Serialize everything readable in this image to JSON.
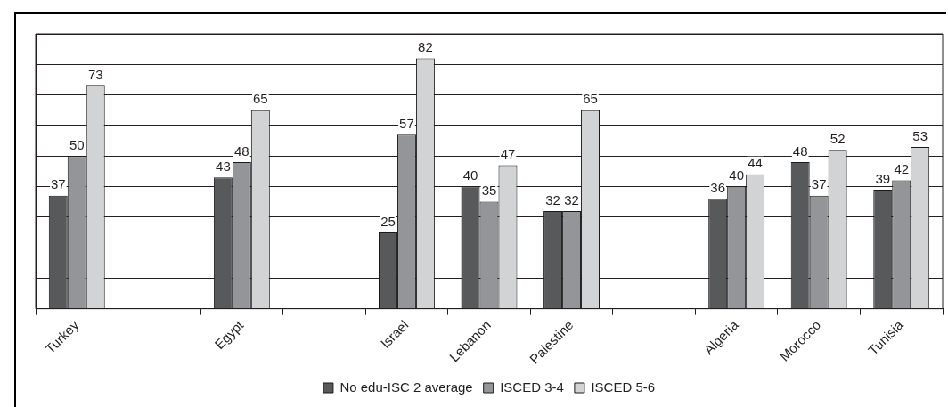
{
  "chart_data": {
    "type": "bar",
    "categories": [
      "Turkey",
      null,
      "Egypt",
      null,
      "Israel",
      "Lebanon",
      "Palestine",
      null,
      "Algeria",
      "Morocco",
      "Tunisia"
    ],
    "series": [
      {
        "name": "No edu-ISC 2 average",
        "color": "#58595b",
        "values": [
          37,
          null,
          43,
          null,
          25,
          40,
          32,
          null,
          36,
          48,
          39
        ]
      },
      {
        "name": "ISCED 3-4",
        "color": "#939598",
        "values": [
          50,
          null,
          48,
          null,
          57,
          35,
          32,
          null,
          40,
          37,
          42
        ]
      },
      {
        "name": "ISCED 5-6",
        "color": "#d1d3d4",
        "values": [
          73,
          null,
          65,
          null,
          82,
          47,
          65,
          null,
          44,
          52,
          53
        ]
      }
    ],
    "ylim": [
      0,
      90
    ],
    "yticks": [
      {
        "value": 0,
        "label": null
      },
      {
        "value": 10,
        "label": null
      },
      {
        "value": 20,
        "label": null
      },
      {
        "value": 30,
        "label": null
      },
      {
        "value": 40,
        "label": null
      },
      {
        "value": 50,
        "label": null
      },
      {
        "value": 60,
        "label": null
      },
      {
        "value": 70,
        "label": null
      },
      {
        "value": 80,
        "label": null
      },
      {
        "value": 90,
        "label": null
      }
    ],
    "grid": "y",
    "legend": "bottom",
    "tick_labels": "x",
    "data_labels": true
  }
}
